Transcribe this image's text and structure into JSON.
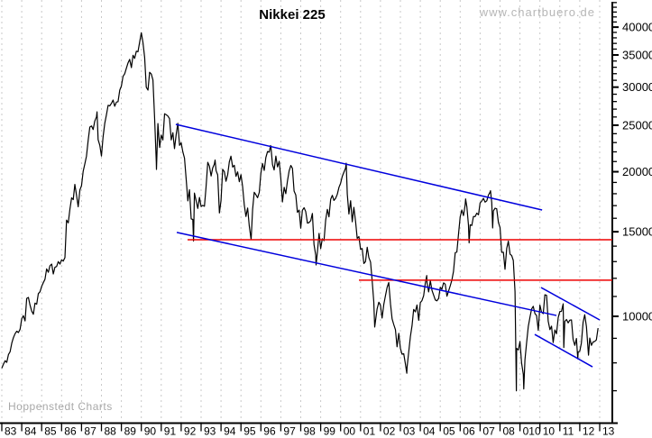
{
  "chart_data": {
    "type": "line",
    "title": "Nikkei 225",
    "watermark": "www.chartbuero.de",
    "credit": "Hoppenstedt Charts",
    "y_scale": "log",
    "grid": {
      "vertical_years": true,
      "horizontal": false
    },
    "x_range": [
      1983,
      2013.6
    ],
    "y_axis_side": "right",
    "y_ticks": [
      10000,
      15000,
      20000,
      25000,
      30000,
      35000,
      40000
    ],
    "y_minor_step": 1000,
    "x_tick_labels": [
      "83",
      "84",
      "85",
      "86",
      "87",
      "88",
      "89",
      "90",
      "91",
      "92",
      "93",
      "94",
      "95",
      "96",
      "97",
      "98",
      "99",
      "00",
      "01",
      "02",
      "03",
      "04",
      "05",
      "06",
      "07",
      "08",
      "010",
      "10",
      "11",
      "12",
      "13"
    ],
    "series": {
      "name": "Nikkei 225 index",
      "color": "#000000",
      "monthly_closes": {
        "1983": [
          7950,
          8080,
          8020,
          8330,
          8440,
          8800,
          9030,
          9200,
          9310,
          9250,
          9400,
          9890
        ],
        "1984": [
          10030,
          9780,
          10900,
          10950,
          10550,
          10250,
          10100,
          10650,
          10600,
          11150,
          11250,
          11540
        ],
        "1985": [
          11750,
          11950,
          12550,
          12350,
          12750,
          12850,
          12250,
          12650,
          12700,
          13000,
          12850,
          13110
        ],
        "1986": [
          13030,
          13250,
          15860,
          15650,
          16700,
          17650,
          17500,
          18820,
          17850,
          16910,
          18330,
          18700
        ],
        "1987": [
          20020,
          20770,
          21560,
          23270,
          24770,
          24900,
          24490,
          25500,
          26010,
          23330,
          22690,
          21560
        ],
        "1988": [
          23620,
          25240,
          26260,
          27510,
          27420,
          27770,
          28200,
          27370,
          27920,
          27980,
          29580,
          30160
        ],
        "1989": [
          31580,
          31990,
          32840,
          33710,
          34270,
          32950,
          34950,
          34430,
          35640,
          35550,
          37270,
          38920
        ],
        "1990": [
          37190,
          34590,
          29980,
          29580,
          32220,
          31940,
          31040,
          25980,
          20980,
          25190,
          22460,
          23850
        ],
        "1991": [
          23290,
          26410,
          26290,
          26110,
          25790,
          23290,
          24120,
          22340,
          23920,
          25220,
          22690,
          22980
        ],
        "1992": [
          22020,
          21340,
          19350,
          17390,
          18350,
          15950,
          15910,
          18060,
          17400,
          16770,
          17680,
          16930
        ],
        "1993": [
          17020,
          16950,
          18590,
          20920,
          20550,
          19590,
          20380,
          20740,
          20110,
          19700,
          16410,
          17420
        ],
        "1994": [
          20230,
          20000,
          19110,
          19730,
          20970,
          21550,
          20450,
          20630,
          19560,
          19990,
          19070,
          19720
        ],
        "1995": [
          18650,
          17050,
          16140,
          16810,
          15440,
          14520,
          16680,
          18120,
          17910,
          17660,
          18110,
          19870
        ],
        "1996": [
          20810,
          20130,
          21410,
          22040,
          21960,
          22530,
          20690,
          20170,
          21560,
          20470,
          21020,
          19360
        ],
        "1997": [
          17300,
          18560,
          18000,
          19150,
          20070,
          20610,
          20330,
          18230,
          17890,
          16460,
          16640,
          15260
        ],
        "1998": [
          16630,
          16830,
          16530,
          15640,
          15670,
          15830,
          16380,
          14110,
          13410,
          13560,
          14880,
          13840
        ],
        "1999": [
          14500,
          14370,
          15840,
          16700,
          16110,
          17530,
          17860,
          17430,
          17610,
          17940,
          18560,
          18930
        ],
        "2000": [
          19540,
          19960,
          20340,
          17970,
          16330,
          17410,
          15730,
          16860,
          15750,
          14540,
          14650,
          13790
        ],
        "2001": [
          13840,
          12880,
          13000,
          13930,
          13260,
          12970,
          11860,
          10710,
          9780,
          10370,
          10700,
          10540
        ],
        "2002": [
          9920,
          10590,
          11030,
          11490,
          11760,
          10620,
          9880,
          9620,
          9380,
          8640,
          9220,
          8580
        ],
        "2003": [
          8340,
          8360,
          7970,
          7830,
          8420,
          9080,
          9560,
          10340,
          10220,
          10560,
          9810,
          10680
        ],
        "2004": [
          10780,
          11040,
          11720,
          11760,
          11240,
          11860,
          11330,
          11080,
          10820,
          10770,
          10900,
          11490
        ],
        "2005": [
          11390,
          11740,
          11670,
          11010,
          11280,
          11580,
          11900,
          12410,
          13570,
          13610,
          14870,
          16110
        ],
        "2006": [
          16650,
          16210,
          17060,
          16910,
          15470,
          15510,
          15460,
          16140,
          16130,
          16400,
          16270,
          17230
        ],
        "2007": [
          17380,
          17600,
          17290,
          17400,
          17880,
          18140,
          17250,
          16570,
          16790,
          16740,
          15680,
          15310
        ],
        "2008": [
          13590,
          13600,
          12530,
          13850,
          14340,
          13480,
          13380,
          13070,
          11260,
          8580,
          8510,
          8860
        ],
        "2009": [
          7990,
          7570,
          8110,
          8830,
          9520,
          9960,
          10360,
          10490,
          10130,
          10040,
          9350,
          10550
        ],
        "2010": [
          10200,
          10130,
          11090,
          11060,
          9770,
          9380,
          9540,
          8820,
          9370,
          9200,
          9940,
          10230
        ],
        "2011": [
          10240,
          10620,
          9760,
          9850,
          9690,
          9820,
          9830,
          8960,
          8700,
          8990,
          8430,
          8460
        ],
        "2012": [
          8800,
          9720,
          10080,
          9520,
          8540,
          9010,
          8700,
          8840,
          8870,
          8930,
          9450
        ]
      },
      "extremes": [
        [
          1983.0,
          7800
        ],
        [
          1987.78,
          26650
        ],
        [
          1990.76,
          20220
        ],
        [
          1992.62,
          14350
        ],
        [
          1993.7,
          21150
        ],
        [
          1995.51,
          14490
        ],
        [
          1996.49,
          22670
        ],
        [
          1998.77,
          12790
        ],
        [
          2000.28,
          20830
        ],
        [
          2001.71,
          9500
        ],
        [
          2003.32,
          7610
        ],
        [
          2004.32,
          12160
        ],
        [
          2006.27,
          17560
        ],
        [
          2006.45,
          14220
        ],
        [
          2007.52,
          18260
        ],
        [
          2007.63,
          15270
        ],
        [
          2008.82,
          7000
        ],
        [
          2009.19,
          7060
        ],
        [
          2011.2,
          8610
        ],
        [
          2011.9,
          8160
        ],
        [
          2012.44,
          8300
        ]
      ]
    },
    "trendlines": [
      {
        "name": "channel-upper",
        "color": "#0000dd",
        "points": [
          [
            1991.73,
            25100
          ],
          [
            2010.11,
            16650
          ]
        ]
      },
      {
        "name": "channel-lower",
        "color": "#0000dd",
        "points": [
          [
            1991.78,
            14950
          ],
          [
            2010.83,
            10040
          ]
        ]
      },
      {
        "name": "small-channel-upper",
        "color": "#0000dd",
        "points": [
          [
            2010.06,
            11480
          ],
          [
            2013.0,
            9830
          ]
        ]
      },
      {
        "name": "small-channel-lower",
        "color": "#0000dd",
        "points": [
          [
            2009.74,
            9170
          ],
          [
            2012.64,
            7850
          ]
        ]
      }
    ],
    "hlines": [
      {
        "name": "resistance-line-upper",
        "color": "#ee0000",
        "value": 14440,
        "from": 1992.32
      },
      {
        "name": "resistance-line-lower",
        "color": "#ee0000",
        "value": 11890,
        "from": 2000.92
      }
    ],
    "colors": {
      "price": "#000000",
      "trend": "#0000dd",
      "resistance": "#ee0000",
      "grid": "#c8c8c8"
    }
  }
}
